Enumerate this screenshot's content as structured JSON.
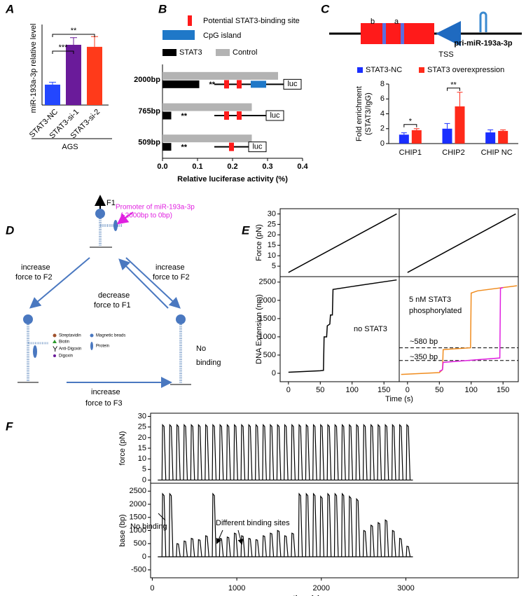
{
  "panels": [
    "A",
    "B",
    "C",
    "D",
    "E",
    "F"
  ],
  "chart_data": [
    {
      "type": "bar",
      "ylabel": "miR-193a-3p relative level",
      "categories": [
        "STAT3-NC",
        "STAT3-si-1",
        "STAT3-si-2"
      ],
      "values": [
        1.0,
        2.95,
        2.85
      ],
      "errors": [
        0.12,
        0.35,
        0.5
      ],
      "colors": [
        "#2347ff",
        "#6a1b9a",
        "#ff3a1a"
      ],
      "ylim": [
        0,
        3.6
      ],
      "annotations": [
        "***",
        "**"
      ],
      "group_label": "AGS"
    },
    {
      "type": "hbar",
      "categories": [
        "2000bp",
        "765bp",
        "509bp"
      ],
      "series": [
        {
          "name": "STAT3",
          "color": "#000000",
          "values": [
            0.105,
            0.025,
            0.025
          ]
        },
        {
          "name": "Control",
          "color": "#b3b3b3",
          "values": [
            0.33,
            0.255,
            0.255
          ]
        }
      ],
      "xlim": [
        0,
        0.4
      ],
      "xticks": [
        {
          "value": 0,
          "label": "0.0"
        },
        0.1,
        0.2,
        0.3,
        0.4
      ],
      "xlabel": "Relative luciferase activity (%)",
      "legend_items": [
        "Potential STAT3-binding site",
        "CpG island"
      ],
      "legend_colors": [
        "#ff1a1a",
        "#1f78c8"
      ],
      "annotations": [
        "**",
        "**",
        "**"
      ],
      "reporter_label": "luc"
    },
    {
      "type": "grouped_bar",
      "diagram_labels": [
        "b",
        "a",
        "TSS",
        "pri-miR-193a-3p"
      ],
      "categories": [
        "CHIP1",
        "CHIP2",
        "CHIP NC"
      ],
      "series": [
        {
          "name": "STAT3-NC",
          "color": "#1a2eff",
          "values": [
            1.2,
            2.0,
            1.5
          ],
          "errors": [
            0.25,
            0.7,
            0.35
          ]
        },
        {
          "name": "STAT3 overexpression",
          "color": "#ff2a1a",
          "values": [
            1.8,
            5.0,
            1.7
          ],
          "errors": [
            0.2,
            1.9,
            0.15
          ]
        }
      ],
      "ylim": [
        0,
        8
      ],
      "yticks": [
        0,
        2,
        4,
        6,
        8
      ],
      "ylabel": [
        "Fold enrichment",
        "(STAT3/IgG)"
      ],
      "annotations": [
        "*",
        "**"
      ]
    },
    {
      "type": "line",
      "ylabel": "Force (pN)",
      "ylim": [
        0,
        32.5
      ],
      "yticks": [
        5,
        10,
        15,
        20,
        25,
        30
      ],
      "xlim": [
        -13,
        174
      ],
      "series": [
        {
          "color": "#000000",
          "x": [
            0,
            170
          ],
          "values": [
            2,
            30
          ]
        }
      ]
    },
    {
      "type": "line",
      "ylim": [
        0,
        32.5
      ],
      "xlim": [
        -13,
        174
      ],
      "series": [
        {
          "color": "#000000",
          "x": [
            0,
            170
          ],
          "values": [
            2,
            30
          ]
        }
      ]
    },
    {
      "type": "line",
      "ylabel": "DNA Extension (nm)",
      "ylim": [
        -230,
        2650
      ],
      "yticks": [
        0,
        500,
        1000,
        1500,
        2000,
        2500
      ],
      "xlim": [
        -13,
        174
      ],
      "xticks": [
        0,
        50,
        100,
        150
      ],
      "annotations": [
        "no STAT3"
      ],
      "series": [
        {
          "color": "#000000",
          "x": [
            0,
            50,
            55,
            56,
            60,
            61,
            65,
            66,
            69,
            70,
            100,
            170
          ],
          "values": [
            30,
            70,
            80,
            1000,
            1000,
            1300,
            1350,
            1600,
            1600,
            2300,
            2380,
            2560
          ]
        }
      ]
    },
    {
      "type": "line",
      "ylim": [
        -230,
        2650
      ],
      "xlim": [
        -13,
        174
      ],
      "xticks": [
        0,
        50,
        100,
        150
      ],
      "xlabel": "Time (s)",
      "annotations": [
        "5 nM STAT3",
        "phosphorylated",
        "~580 bp",
        "~350 bp"
      ],
      "ref_lines": [
        700,
        350
      ],
      "series": [
        {
          "color": "#f08c1e",
          "x": [
            -10,
            50,
            55,
            56,
            99,
            100,
            110,
            172
          ],
          "values": [
            -30,
            20,
            100,
            650,
            700,
            2200,
            2260,
            2400
          ]
        },
        {
          "color": "#e020e0",
          "x": [
            50,
            55,
            56,
            145,
            146,
            150
          ],
          "values": [
            50,
            100,
            300,
            420,
            2330,
            2350
          ]
        }
      ]
    },
    {
      "type": "pulse",
      "ylabel": "force (pN)",
      "ylim": [
        -1.5,
        31.5
      ],
      "yticks": [
        0,
        5,
        10,
        15,
        20,
        25,
        30
      ],
      "xlim": [
        -20,
        4330
      ],
      "x": [
        115,
        200,
        285,
        370,
        455,
        540,
        625,
        710,
        795,
        880,
        965,
        1050,
        1135,
        1220,
        1305,
        1390,
        1475,
        1560,
        1645,
        1730,
        1815,
        1900,
        1985,
        2070,
        2155,
        2240,
        2325,
        2410,
        2495,
        2580,
        2665,
        2750,
        2835,
        2920,
        3005
      ],
      "values": [
        26,
        26,
        26,
        26,
        26,
        26,
        26,
        26,
        26,
        26,
        26,
        26,
        26,
        26,
        26,
        26,
        26,
        26,
        26,
        26,
        26,
        26,
        26,
        26,
        26,
        26,
        26,
        26,
        26,
        26,
        26,
        26,
        26,
        26,
        26
      ]
    },
    {
      "type": "pulse",
      "ylabel": "base (bp)",
      "xlabel": "time (s)",
      "ylim": [
        -800,
        2800
      ],
      "yticks": [
        -500,
        0,
        500,
        1000,
        1500,
        2000,
        2500
      ],
      "xlim": [
        -20,
        4330
      ],
      "xticks": [
        0,
        1000,
        2000,
        3000
      ],
      "annotations": [
        "No binding",
        "Different binding sites"
      ],
      "x": [
        115,
        200,
        285,
        370,
        455,
        540,
        625,
        710,
        795,
        880,
        965,
        1050,
        1135,
        1220,
        1305,
        1390,
        1475,
        1560,
        1645,
        1730,
        1815,
        1900,
        1985,
        2070,
        2155,
        2240,
        2325,
        2410,
        2495,
        2580,
        2665,
        2750,
        2835,
        2920,
        3005
      ],
      "values": [
        2400,
        2400,
        500,
        600,
        700,
        650,
        800,
        2400,
        700,
        750,
        900,
        800,
        700,
        650,
        800,
        900,
        1000,
        800,
        900,
        2400,
        2400,
        2400,
        2300,
        2400,
        2400,
        2400,
        2300,
        2200,
        1000,
        1200,
        1300,
        1400,
        1000,
        700,
        400
      ]
    }
  ],
  "diagram_d": {
    "f1": "F1",
    "promoter": [
      "Promoter of miR-193a-3p",
      "(-2000bp to 0bp)"
    ],
    "left_arrow": [
      "increase",
      "force to F2"
    ],
    "right_arrow": [
      "increase",
      "force to F2"
    ],
    "back_arrow": [
      "decrease",
      "force to F1"
    ],
    "no_binding": [
      "No",
      "binding"
    ],
    "bottom_arrow": [
      "increase",
      "force to F3"
    ],
    "legend": [
      "Streptavidin",
      "Biotin",
      "Anti-Digoxin",
      "Digoxin",
      "Magnetic beads",
      "Protein"
    ]
  }
}
